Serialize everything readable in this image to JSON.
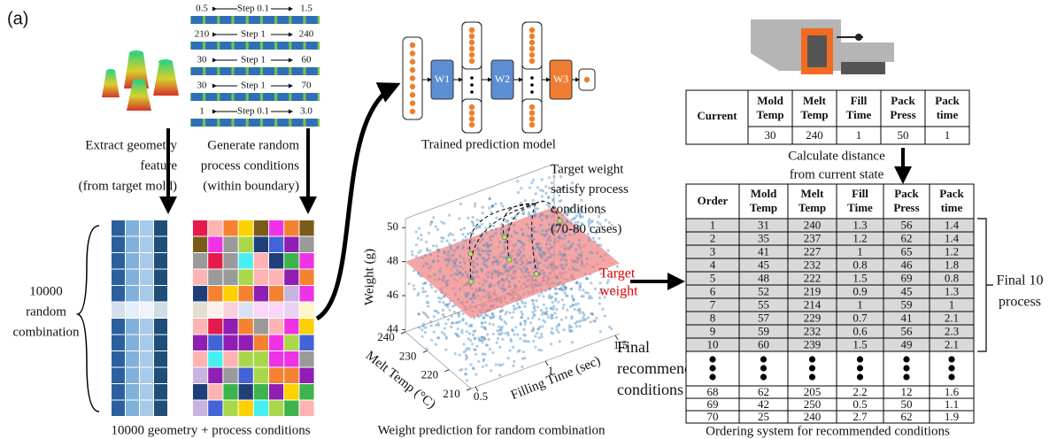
{
  "panel_label": "(a)",
  "sliders": [
    {
      "min": "0.5",
      "step": "Step 0.1",
      "max": "1.5"
    },
    {
      "min": "210",
      "step": "Step 1",
      "max": "240"
    },
    {
      "min": "30",
      "step": "Step 1",
      "max": "60"
    },
    {
      "min": "30",
      "step": "Step 1",
      "max": "70"
    },
    {
      "min": "1",
      "step": "Step 0.1",
      "max": "3.0"
    }
  ],
  "geometry_label": [
    "Extract geometry",
    "feature",
    "(from target mold)"
  ],
  "process_label": [
    "Generate random",
    "process conditions",
    "(within boundary)"
  ],
  "combination_label": [
    "10000",
    "random",
    "combination"
  ],
  "combination_caption": "10000 geometry + process conditions",
  "model": {
    "layers": [
      "W1",
      "W2",
      "W3"
    ],
    "caption": "Trained prediction model"
  },
  "plot": {
    "annotation": [
      "Target weight",
      "satisfy process",
      "conditions",
      "(70-80 cases)"
    ],
    "target_label": [
      "Target",
      "weight"
    ],
    "z_label": "Weight (g)",
    "z_ticks": [
      44,
      46,
      48,
      50
    ],
    "y_label": "Melt Temp (°C)",
    "y_ticks": [
      240,
      230,
      220,
      210
    ],
    "x_label": "Filling Time (sec)",
    "x_ticks": [
      0.5,
      1,
      1.5
    ],
    "final_label": [
      "Final",
      "recommend",
      "conditions"
    ],
    "caption": "Weight prediction for random combination"
  },
  "current_table": {
    "row_label": "Current",
    "headers": [
      [
        "Mold",
        "Temp"
      ],
      [
        "Melt",
        "Temp"
      ],
      [
        "Fill",
        "Time"
      ],
      [
        "Pack",
        "Press"
      ],
      [
        "Pack",
        "time"
      ]
    ],
    "values": [
      30,
      240,
      1,
      50,
      1
    ]
  },
  "distance_label": [
    "Calculate distance",
    "from current state"
  ],
  "order_table": {
    "headers": [
      [
        "Order"
      ],
      [
        "Mold",
        "Temp"
      ],
      [
        "Melt",
        "Temp"
      ],
      [
        "Fill",
        "Time"
      ],
      [
        "Pack",
        "Press"
      ],
      [
        "Pack",
        "time"
      ]
    ],
    "top_rows": [
      [
        1,
        31,
        240,
        1.3,
        56,
        1.4
      ],
      [
        2,
        35,
        237,
        1.2,
        62,
        1.4
      ],
      [
        3,
        41,
        227,
        1,
        65,
        1.2
      ],
      [
        4,
        45,
        232,
        0.8,
        46,
        1.8
      ],
      [
        5,
        48,
        222,
        1.5,
        69,
        0.8
      ],
      [
        6,
        52,
        219,
        0.9,
        45,
        1.3
      ],
      [
        7,
        55,
        214,
        1,
        59,
        1
      ],
      [
        8,
        57,
        229,
        0.7,
        41,
        2.1
      ],
      [
        9,
        59,
        232,
        0.6,
        56,
        2.3
      ],
      [
        10,
        60,
        239,
        1.5,
        49,
        2.1
      ]
    ],
    "bottom_rows": [
      [
        68,
        62,
        205,
        2.2,
        12,
        1.6
      ],
      [
        69,
        42,
        250,
        0.5,
        50,
        1.1
      ],
      [
        70,
        25,
        240,
        2.7,
        62,
        1.9
      ]
    ]
  },
  "final_label": [
    "Final 10",
    "process"
  ],
  "order_caption": "Ordering system for recommended conditions"
}
